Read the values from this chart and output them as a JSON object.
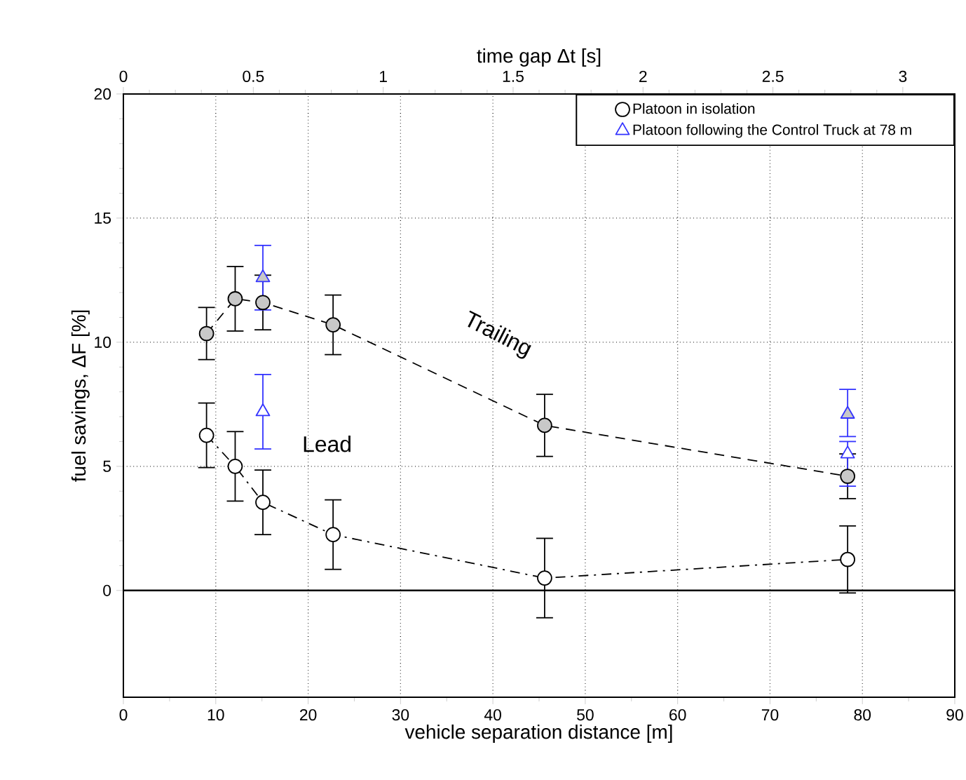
{
  "chart_data": {
    "type": "line",
    "xlabel": "vehicle separation distance [m]",
    "ylabel": "fuel savings, ΔF [%]",
    "x2label": "time gap Δt [s]",
    "xlim": [
      0,
      90
    ],
    "xticks": [
      0,
      10,
      20,
      30,
      40,
      50,
      60,
      70,
      80,
      90
    ],
    "x2lim": [
      0,
      3.2
    ],
    "x2ticks": [
      0,
      0.5,
      1,
      1.5,
      2,
      2.5,
      3
    ],
    "ylim": [
      -4.3,
      20
    ],
    "yticks": [
      0,
      5,
      10,
      15,
      20
    ],
    "grid": true,
    "legend": "top right",
    "series": [
      {
        "name": "Platoon in isolation",
        "marker": "circle",
        "line_style": "dashdot",
        "color": "#000000",
        "x": [
          9.0,
          12.1,
          15.1,
          22.7,
          45.6,
          78.4
        ],
        "values": [
          6.25,
          5.0,
          3.55,
          2.25,
          0.5,
          1.25
        ],
        "errors": [
          1.3,
          1.4,
          1.3,
          1.4,
          1.6,
          1.35
        ]
      },
      {
        "marker": "circle",
        "line_style": "dashed",
        "color": "#000000",
        "x": [
          9.0,
          12.1,
          15.1,
          22.7,
          45.6,
          78.4
        ],
        "values": [
          10.35,
          11.75,
          11.6,
          10.7,
          6.65,
          4.6
        ],
        "errors": [
          1.05,
          1.3,
          1.1,
          1.2,
          1.25,
          0.9
        ]
      },
      {
        "name": "Platoon following the Control Truck at 78 m",
        "type": "scatter",
        "marker": "triangle",
        "color": "#3333ff",
        "x": [
          15.1,
          78.4
        ],
        "values": [
          7.2,
          5.5
        ],
        "errors": [
          1.5,
          [
            4.2,
            6.0
          ]
        ]
      },
      {
        "type": "scatter",
        "marker": "triangle",
        "color": "#3333ff",
        "x": [
          15.1,
          78.4
        ],
        "values": [
          12.6,
          7.1
        ],
        "errors": [
          1.3,
          [
            6.2,
            8.1
          ]
        ]
      }
    ],
    "ref_lines": [
      {
        "axis": "y",
        "value": 0
      }
    ],
    "annotations": [
      "Lead",
      "Trailing"
    ]
  }
}
